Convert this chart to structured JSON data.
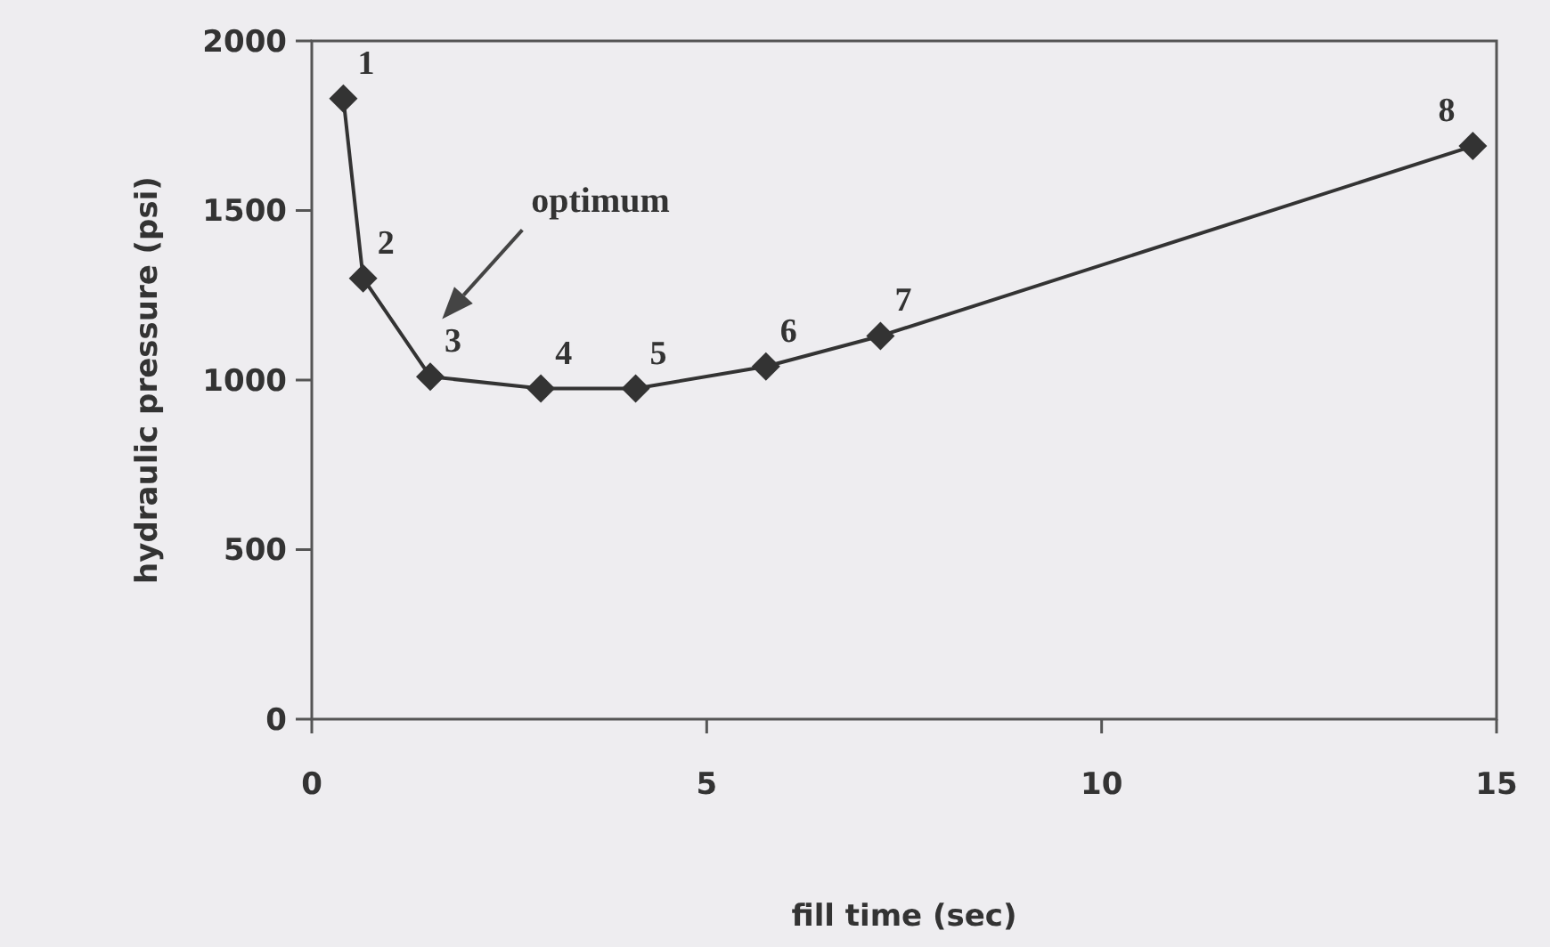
{
  "chart_data": {
    "type": "line",
    "xlabel": "fill time (sec)",
    "ylabel": "hydraulic pressure (psi)",
    "x": [
      0.4,
      0.65,
      1.5,
      2.9,
      4.1,
      5.75,
      7.2,
      14.7
    ],
    "series": [
      {
        "color": "#333333",
        "values": [
          1830,
          1300,
          1010,
          975,
          975,
          1040,
          1130,
          1690
        ]
      }
    ],
    "xlim": [
      0,
      15
    ],
    "xticks": [
      0,
      5,
      10,
      15
    ],
    "ylim": [
      0,
      2000
    ],
    "yticks": [
      0,
      500,
      1000,
      1500,
      2000
    ],
    "grid": false,
    "marker": "diamond",
    "line_style": "solid",
    "annotations": [
      {
        "text": "1",
        "x": 0.4,
        "y": 1830
      },
      {
        "text": "2",
        "x": 0.65,
        "y": 1300
      },
      {
        "text": "3",
        "x": 1.5,
        "y": 1010
      },
      {
        "text": "4",
        "x": 2.9,
        "y": 975
      },
      {
        "text": "5",
        "x": 4.1,
        "y": 975
      },
      {
        "text": "6",
        "x": 5.75,
        "y": 1040
      },
      {
        "text": "7",
        "x": 7.2,
        "y": 1130
      },
      {
        "text": "8",
        "x": 14.7,
        "y": 1690
      },
      "optimum"
    ]
  }
}
